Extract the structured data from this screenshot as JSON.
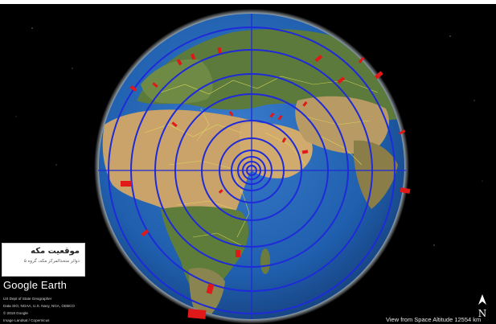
{
  "info_box": {
    "title": "موقعیت مکه",
    "subtitle": "دوائر متحدالمرکز مکه، گروه ۵"
  },
  "brand": "Google Earth",
  "credits": [
    "US Dept of State Geographer",
    "Data SIO, NOAA, U.S. Navy, NGA, GEBCO",
    "© 2018 Google",
    "Image Landsat / Copernicus"
  ],
  "compass": {
    "icon": "north-arrow-icon",
    "letter": "N"
  },
  "status_bar": {
    "text": "View from Space   Altitude 12554 km"
  },
  "colors": {
    "background": "#000000",
    "ocean": "#1f5fae",
    "land_desert": "#c9a36a",
    "land_vegetation": "#5c7a3c",
    "rings": "#1f2ad8",
    "borders": "#e4e05a",
    "markers": "#e01818"
  }
}
